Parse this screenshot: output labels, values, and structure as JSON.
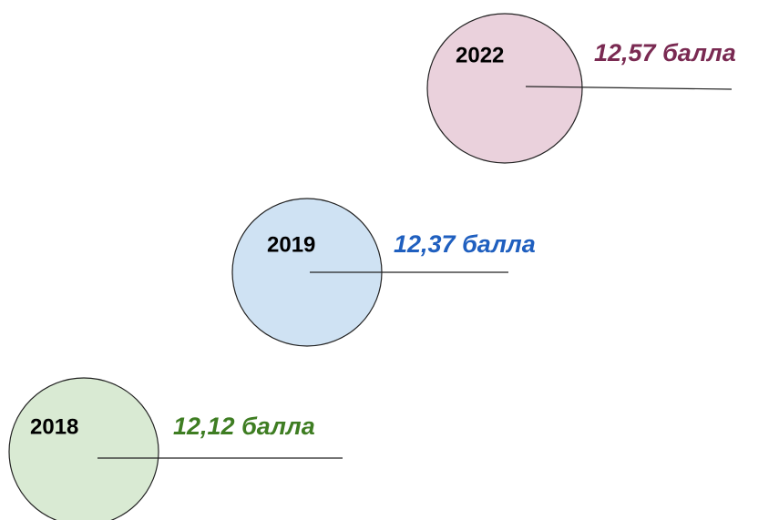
{
  "nodes": [
    {
      "label": "2022",
      "value": "12,57 балла"
    },
    {
      "label": "2019",
      "value": "12,37 балла"
    },
    {
      "label": "2018",
      "value": "12,12 балла"
    }
  ]
}
